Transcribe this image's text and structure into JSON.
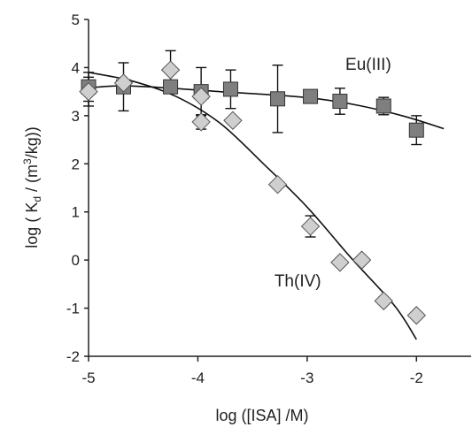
{
  "chart_data": {
    "type": "scatter",
    "xlabel": "log ([ISA] /M)",
    "ylabel_parts": [
      "log ( K",
      "d",
      " / (m",
      "3",
      "/kg))"
    ],
    "xlim": [
      -5,
      -1.5
    ],
    "ylim": [
      -2,
      5
    ],
    "xticks": [
      -5,
      -4,
      -3,
      -2
    ],
    "yticks": [
      -2,
      -1,
      0,
      1,
      2,
      3,
      4,
      5
    ],
    "grid": false,
    "series": [
      {
        "name": "Eu(III)",
        "marker": "square",
        "color": "#7f7f7f",
        "points": [
          {
            "x": -5.0,
            "y": 3.6,
            "err": 0.3
          },
          {
            "x": -4.68,
            "y": 3.6,
            "err": 0.5
          },
          {
            "x": -4.25,
            "y": 3.6,
            "err": 0.0
          },
          {
            "x": -3.97,
            "y": 3.5,
            "err": 0.5
          },
          {
            "x": -3.7,
            "y": 3.55,
            "err": 0.4
          },
          {
            "x": -3.27,
            "y": 3.35,
            "err": 0.7
          },
          {
            "x": -2.97,
            "y": 3.4,
            "err": 0.0
          },
          {
            "x": -2.7,
            "y": 3.3,
            "err": 0.27
          },
          {
            "x": -2.3,
            "y": 3.2,
            "err": 0.18
          },
          {
            "x": -2.0,
            "y": 2.7,
            "err": 0.3
          }
        ],
        "fit": [
          {
            "x": -5.0,
            "y": 3.58
          },
          {
            "x": -4.7,
            "y": 3.62
          },
          {
            "x": -4.3,
            "y": 3.58
          },
          {
            "x": -3.8,
            "y": 3.5
          },
          {
            "x": -3.3,
            "y": 3.43
          },
          {
            "x": -2.9,
            "y": 3.35
          },
          {
            "x": -2.5,
            "y": 3.2
          },
          {
            "x": -2.1,
            "y": 2.98
          },
          {
            "x": -1.75,
            "y": 2.73
          }
        ]
      },
      {
        "name": "Th(IV)",
        "marker": "diamond",
        "color": "#cfcfcf",
        "points": [
          {
            "x": -5.0,
            "y": 3.5,
            "err": 0.3
          },
          {
            "x": -4.68,
            "y": 3.68,
            "err": 0.0
          },
          {
            "x": -4.25,
            "y": 3.95,
            "err": 0.4
          },
          {
            "x": -3.97,
            "y": 3.4,
            "err": 0.0
          },
          {
            "x": -3.97,
            "y": 2.87,
            "err": 0.15
          },
          {
            "x": -3.68,
            "y": 2.9,
            "err": 0.0
          },
          {
            "x": -3.27,
            "y": 1.57,
            "err": 0.0
          },
          {
            "x": -2.97,
            "y": 0.7,
            "err": 0.22
          },
          {
            "x": -2.7,
            "y": -0.05,
            "err": 0.0
          },
          {
            "x": -2.5,
            "y": 0.0,
            "err": 0.0
          },
          {
            "x": -2.3,
            "y": -0.85,
            "err": 0.0
          },
          {
            "x": -2.0,
            "y": -1.15,
            "err": 0.0
          }
        ],
        "fit": [
          {
            "x": -5.0,
            "y": 3.9
          },
          {
            "x": -4.6,
            "y": 3.72
          },
          {
            "x": -4.2,
            "y": 3.4
          },
          {
            "x": -3.8,
            "y": 2.85
          },
          {
            "x": -3.4,
            "y": 2.0
          },
          {
            "x": -3.0,
            "y": 1.1
          },
          {
            "x": -2.6,
            "y": 0.05
          },
          {
            "x": -2.2,
            "y": -0.95
          },
          {
            "x": -2.0,
            "y": -1.65
          }
        ]
      }
    ],
    "annotations": [
      {
        "text": "Eu(III)",
        "x": -2.65,
        "y": 3.95
      },
      {
        "text": "Th(IV)",
        "x": -3.3,
        "y": -0.55
      }
    ]
  }
}
